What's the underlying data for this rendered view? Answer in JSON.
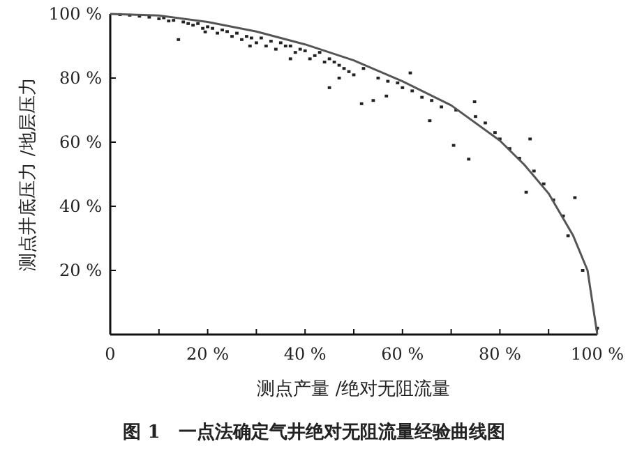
{
  "chart_data": {
    "type": "scatter",
    "title": "图 1　一点法确定气井绝对无阻流量经验曲线图",
    "xlabel": "测点产量 /绝对无阻流量",
    "ylabel": "测点井底压力 /地层压力",
    "xlim": [
      0,
      100
    ],
    "ylim": [
      0,
      100
    ],
    "xticks": [
      {
        "value": 0,
        "label": "0"
      },
      {
        "value": 10,
        "label": null
      },
      {
        "value": 20,
        "label": "20 %"
      },
      {
        "value": 30,
        "label": null
      },
      {
        "value": 40,
        "label": "40 %"
      },
      {
        "value": 50,
        "label": null
      },
      {
        "value": 60,
        "label": "60 %"
      },
      {
        "value": 70,
        "label": null
      },
      {
        "value": 80,
        "label": "80 %"
      },
      {
        "value": 90,
        "label": null
      },
      {
        "value": 100,
        "label": "100 %"
      }
    ],
    "yticks": [
      {
        "value": 20,
        "label": "20 %"
      },
      {
        "value": 40,
        "label": "40 %"
      },
      {
        "value": 60,
        "label": "60 %"
      },
      {
        "value": 80,
        "label": "80 %"
      },
      {
        "value": 100,
        "label": "100 %"
      }
    ],
    "grid": false,
    "series": [
      {
        "marker": "square",
        "color": "#222222",
        "x": [
          2,
          4,
          6,
          8,
          10,
          11,
          12,
          13,
          14,
          15,
          16,
          17,
          18,
          19,
          19.5,
          20,
          21,
          22,
          23,
          24,
          25,
          26,
          27,
          28,
          28.7,
          29,
          30,
          31,
          32,
          33,
          34,
          35,
          36,
          37,
          37,
          38,
          39,
          40,
          41,
          42,
          43,
          44,
          45,
          45,
          46,
          47,
          47,
          48,
          49,
          50,
          51.6,
          52,
          54,
          55,
          56.7,
          57,
          59,
          60,
          61.6,
          62,
          64,
          65.6,
          66,
          68,
          70.5,
          71,
          73.6,
          74.8,
          75,
          77,
          79,
          80,
          82,
          84,
          85.4,
          86.2,
          87,
          89,
          91,
          93,
          94,
          95.4,
          97,
          100
        ],
        "values": [
          99.8,
          99.6,
          99.3,
          99,
          98.5,
          98.8,
          97.8,
          98,
          92,
          97.5,
          97,
          96.5,
          97,
          95.5,
          94.4,
          96,
          95.5,
          94,
          95,
          94.5,
          93,
          94,
          92,
          93,
          90,
          92.5,
          91,
          92.5,
          90,
          91.5,
          89,
          91,
          90,
          86,
          90,
          88,
          89,
          88.5,
          86,
          87,
          88,
          85,
          77,
          86,
          85,
          80,
          84,
          83,
          82,
          81,
          72,
          83,
          73,
          80,
          74.4,
          79,
          78.5,
          77,
          81.6,
          76,
          74,
          66.7,
          73,
          71,
          59,
          70,
          54.7,
          72.6,
          68,
          66,
          63,
          61,
          58,
          55,
          44.4,
          61,
          51,
          47,
          42,
          37,
          30.8,
          42.7,
          20,
          2
        ]
      },
      {
        "type": "line",
        "color": "#555555",
        "x": [
          0,
          10,
          20,
          30,
          40,
          50,
          60,
          70,
          80,
          85,
          90,
          95,
          98,
          100
        ],
        "values": [
          100,
          99.5,
          97.5,
          94.5,
          90.5,
          85.5,
          79,
          71.5,
          60.5,
          53,
          44,
          31,
          20,
          0
        ]
      }
    ]
  }
}
